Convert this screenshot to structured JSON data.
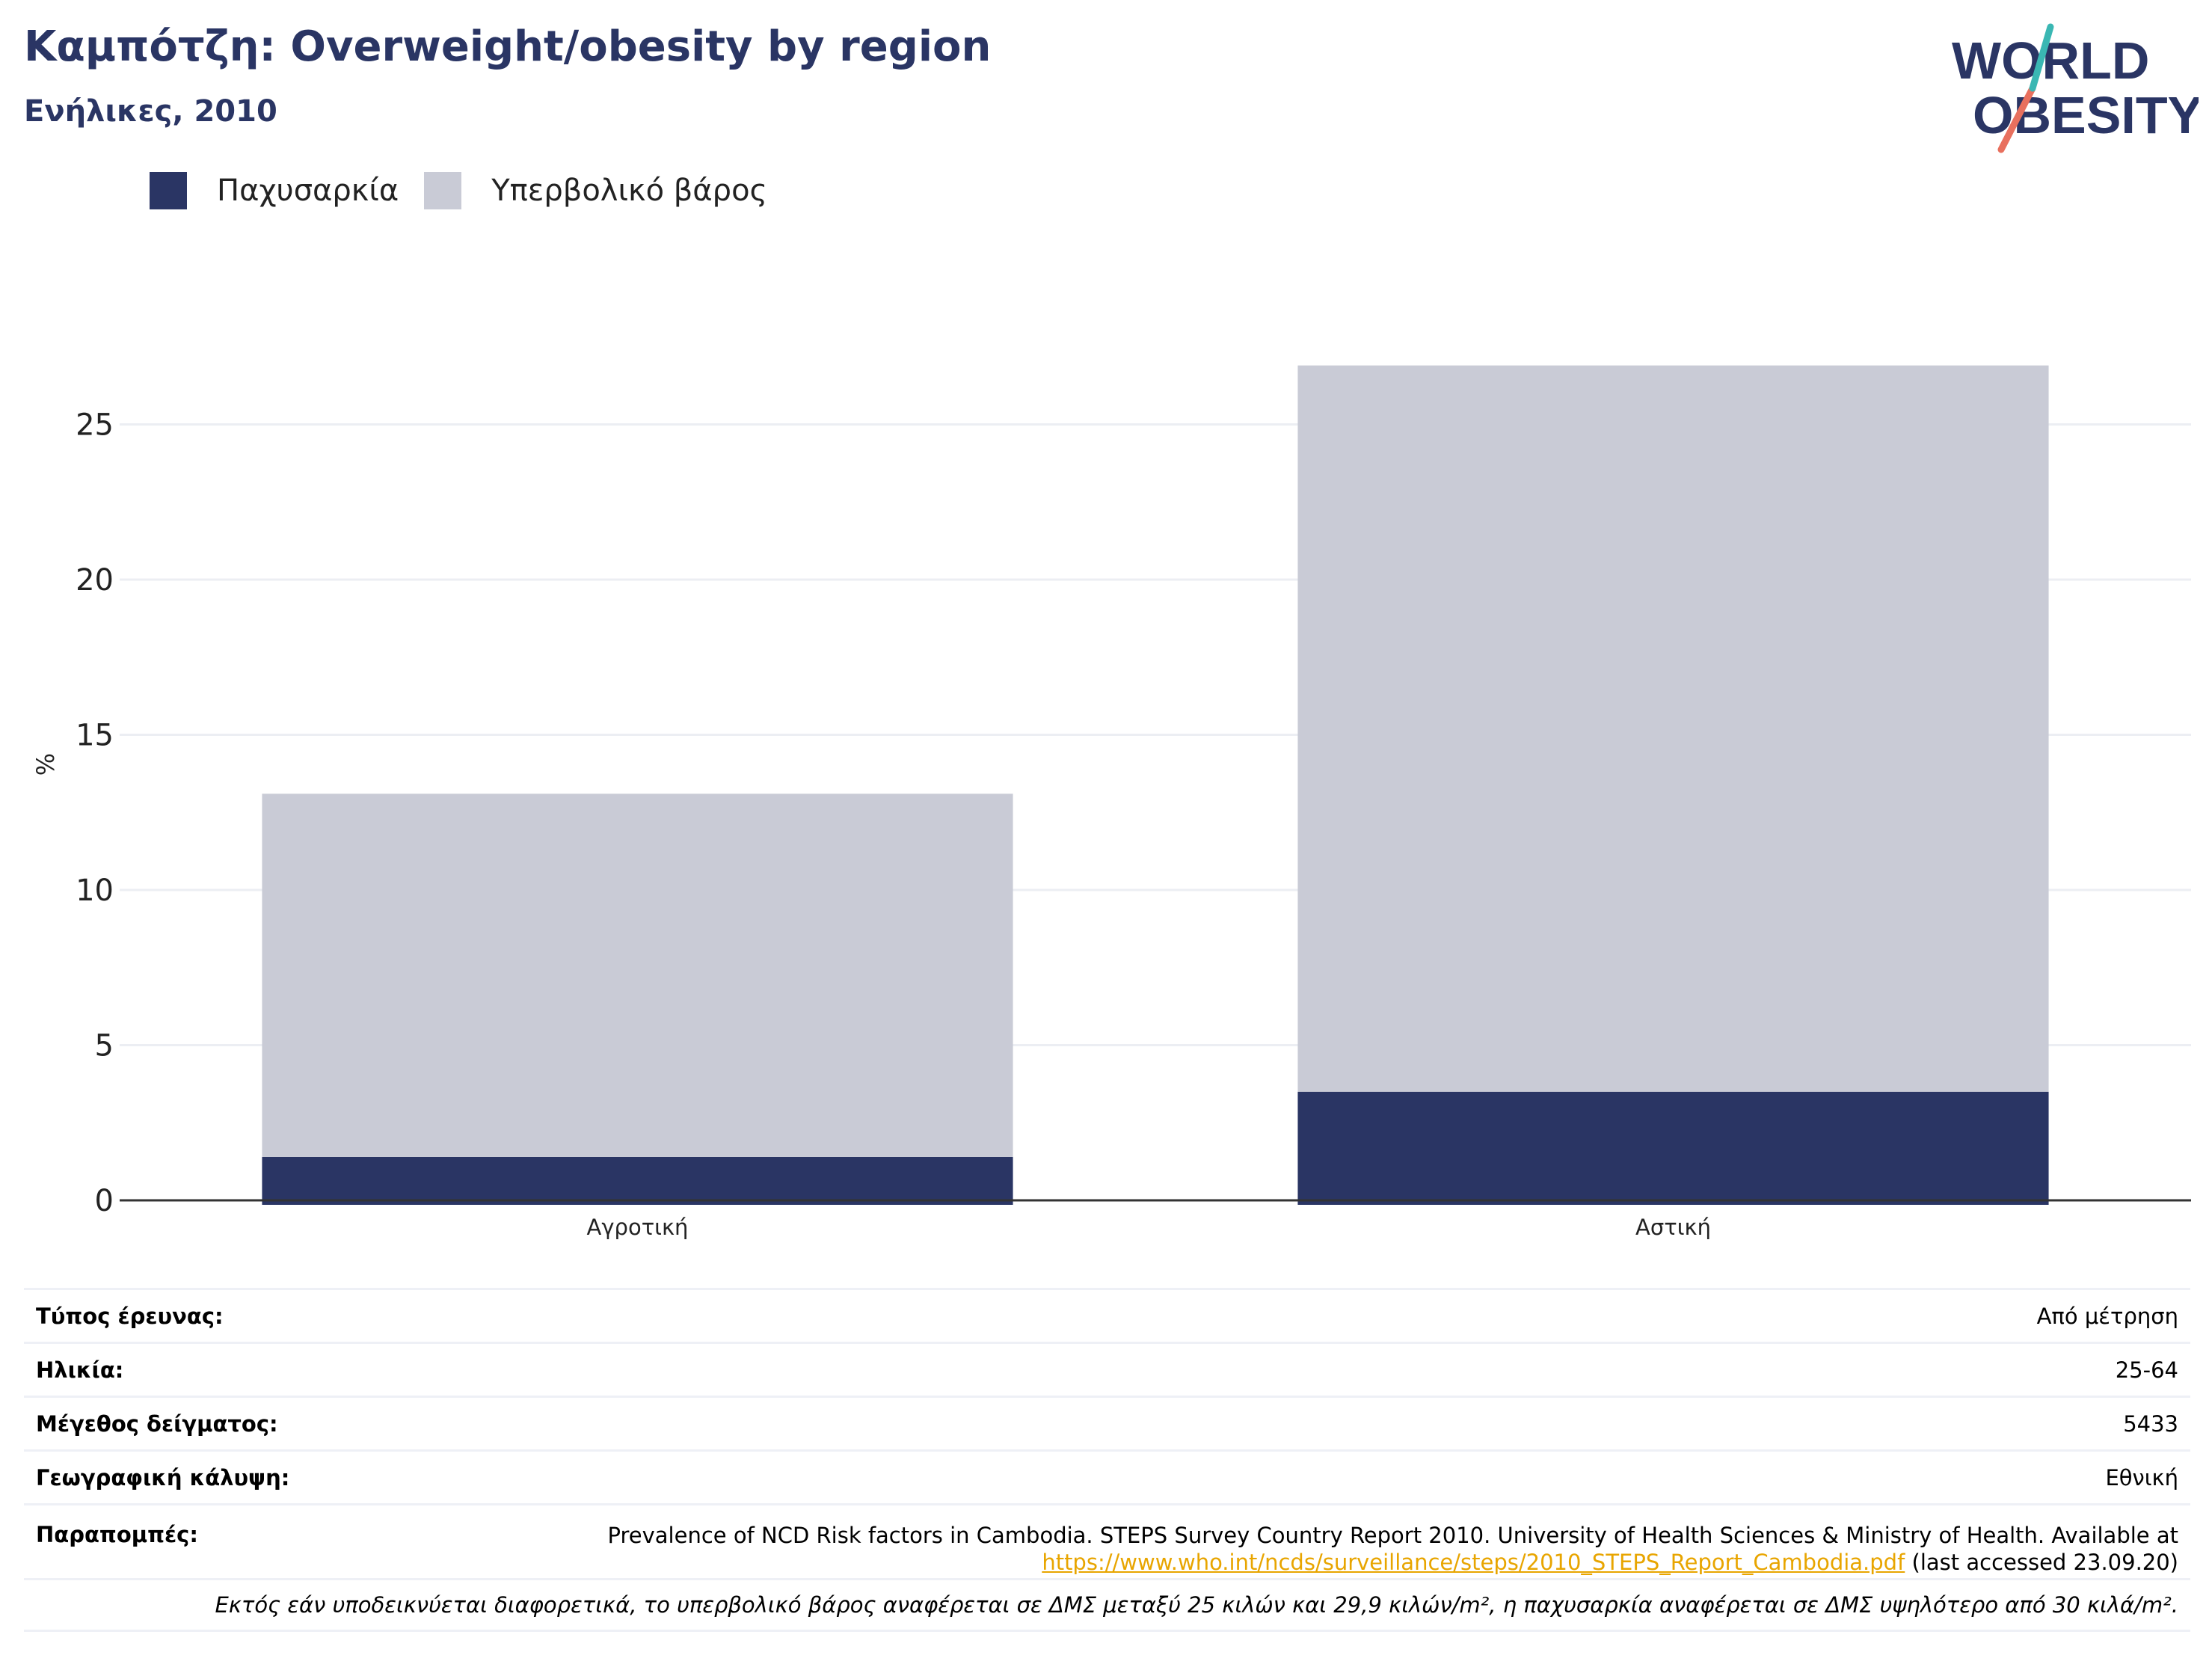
{
  "header": {
    "title": "Καμπότζη: Overweight/obesity by region",
    "subtitle": "Ενήλικες, 2010"
  },
  "logo": {
    "line1": "WORLD",
    "line2": "OBESITY"
  },
  "chart_data": {
    "type": "bar",
    "stacked": true,
    "categories": [
      "Αγροτική",
      "Αστική"
    ],
    "series": [
      {
        "name": "Παχυσαρκία",
        "color": "#2a3564",
        "values": [
          1.4,
          3.5
        ]
      },
      {
        "name": "Υπερβολικό βάρος",
        "color": "#c9cbd6",
        "values": [
          11.7,
          23.4
        ]
      }
    ],
    "ylabel": "%",
    "ylim": [
      0,
      28
    ],
    "yticks": [
      0,
      5,
      10,
      15,
      20,
      25
    ],
    "grid": true,
    "legend": "top-left"
  },
  "info": {
    "survey_type_label": "Τύπος έρευνας:",
    "survey_type_value": "Από μέτρηση",
    "age_label": "Ηλικία:",
    "age_value": "25-64",
    "sample_label": "Μέγεθος δείγματος:",
    "sample_value": "5433",
    "coverage_label": "Γεωγραφική κάλυψη:",
    "coverage_value": "Εθνική",
    "refs_label": "Παραπομπές:",
    "refs_text": "Prevalence of NCD Risk factors in Cambodia. STEPS Survey Country Report 2010. University of Health Sciences & Ministry of Health. Available at",
    "refs_link": "https://www.who.int/ncds/surveillance/steps/2010_STEPS_Report_Cambodia.pdf",
    "refs_suffix": "(last accessed 23.09.20)",
    "footnote": "Εκτός εάν υποδεικνύεται διαφορετικά, το υπερβολικό βάρος αναφέρεται σε ΔΜΣ μεταξύ 25 κιλών και 29,9 κιλών/m², η παχυσαρκία αναφέρεται σε ΔΜΣ υψηλότερο από 30 κιλά/m²."
  }
}
